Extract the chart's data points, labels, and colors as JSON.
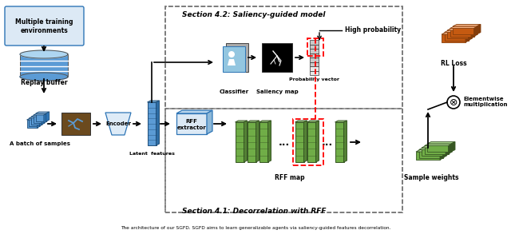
{
  "title": "Section 4.2: Saliency-guided model",
  "subtitle": "Section 4.1: Decorrelation with RFF",
  "bg_color": "#ffffff",
  "text_labels": {
    "multiple_training": "Multiple training\nenvironments",
    "replay_buffer": "Replay buffer",
    "batch_samples": "A batch of samples",
    "encoder": "Encoder",
    "latent_features": "Latent  features",
    "classifier": "Classifier",
    "saliency_map": "Saliency map",
    "prob_vector": "Probability vector",
    "high_prob": "High probability",
    "rff_extractor": "RFF\nextractor",
    "rff_map": "RFF map",
    "rl_loss": "RL Loss",
    "elementwise": "Elementwise\nmultiplication",
    "sample_weights": "Sample weights"
  },
  "colors": {
    "blue_light": "#aed6f1",
    "blue_mid": "#5b9bd5",
    "blue_dark": "#1f4e79",
    "blue_box": "#deebf7",
    "blue_edge": "#2e75b6",
    "green_light": "#a9d18e",
    "green_mid": "#70ad47",
    "green_dark": "#375623",
    "green_dk2": "#548235",
    "orange_light": "#f4b183",
    "orange_mid": "#c55a11",
    "orange_dark": "#843d0b",
    "gray_box": "#d9d9d9",
    "gray_edge": "#808080",
    "black": "#000000",
    "white": "#ffffff",
    "red": "#ff0000"
  }
}
